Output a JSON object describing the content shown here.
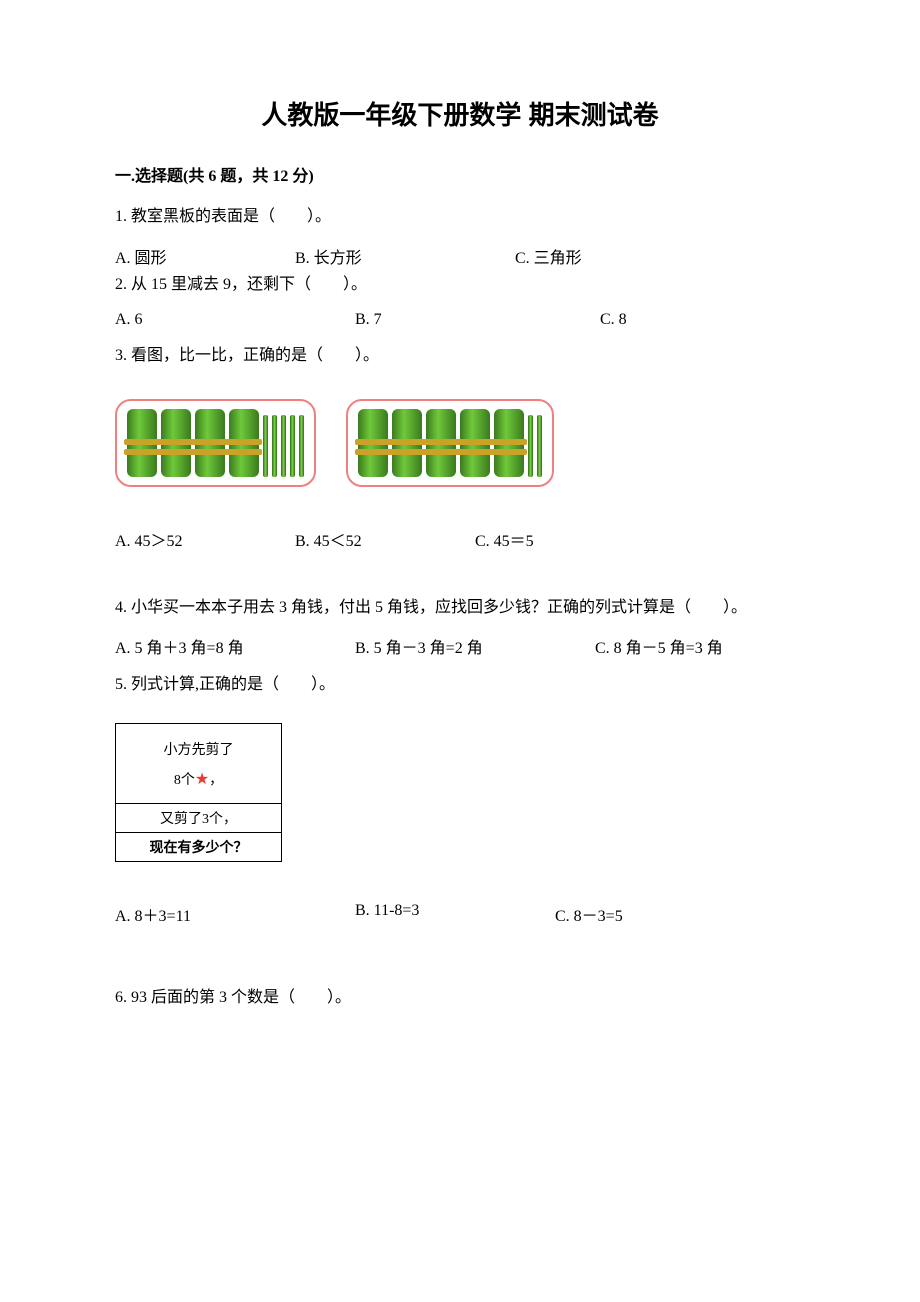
{
  "title": "人教版一年级下册数学 期末测试卷",
  "section1": "一.选择题(共 6 题，共 12 分)",
  "q1": {
    "text": "1. 教室黑板的表面是（　　）。",
    "opts": [
      "A. 圆形",
      "B. 长方形",
      "C. 三角形"
    ]
  },
  "q2": {
    "text": "2. 从 15 里减去 9，还剩下（　　）。",
    "opts": [
      "A. 6",
      "B. 7",
      "C. 8"
    ]
  },
  "q3": {
    "text": "3. 看图，比一比，正确的是（　　）。",
    "figure": {
      "panels": [
        {
          "bundles": 4,
          "sticks": 5,
          "color_border": "#f08080",
          "stick_color": "#5bbf2e"
        },
        {
          "bundles": 5,
          "sticks": 2,
          "color_border": "#f08080",
          "stick_color": "#5bbf2e"
        }
      ]
    },
    "opts": [
      "A. 45＞52",
      "B. 45＜52",
      "C. 45＝5"
    ]
  },
  "q4": {
    "text": "4. 小华买一本本子用去 3 角钱，付出 5 角钱，应找回多少钱？正确的列式计算是（　　）。",
    "opts": [
      "A. 5 角＋3 角=8 角",
      "B. 5 角－3 角=2 角",
      "C. 8 角－5 角=3 角"
    ]
  },
  "q5": {
    "text": "5. 列式计算,正确的是（　　）。",
    "box": {
      "line1a": "小方先剪了",
      "line1b_prefix": "8个",
      "line1b_suffix": "，",
      "star": "★",
      "line2": "又剪了3个，",
      "line3": "现在有多少个？"
    },
    "opts": [
      "A. 8＋3=11",
      "B. 11-8=3",
      "C. 8－3=5"
    ]
  },
  "q6": {
    "text": "6. 93 后面的第 3 个数是（　　）。"
  }
}
